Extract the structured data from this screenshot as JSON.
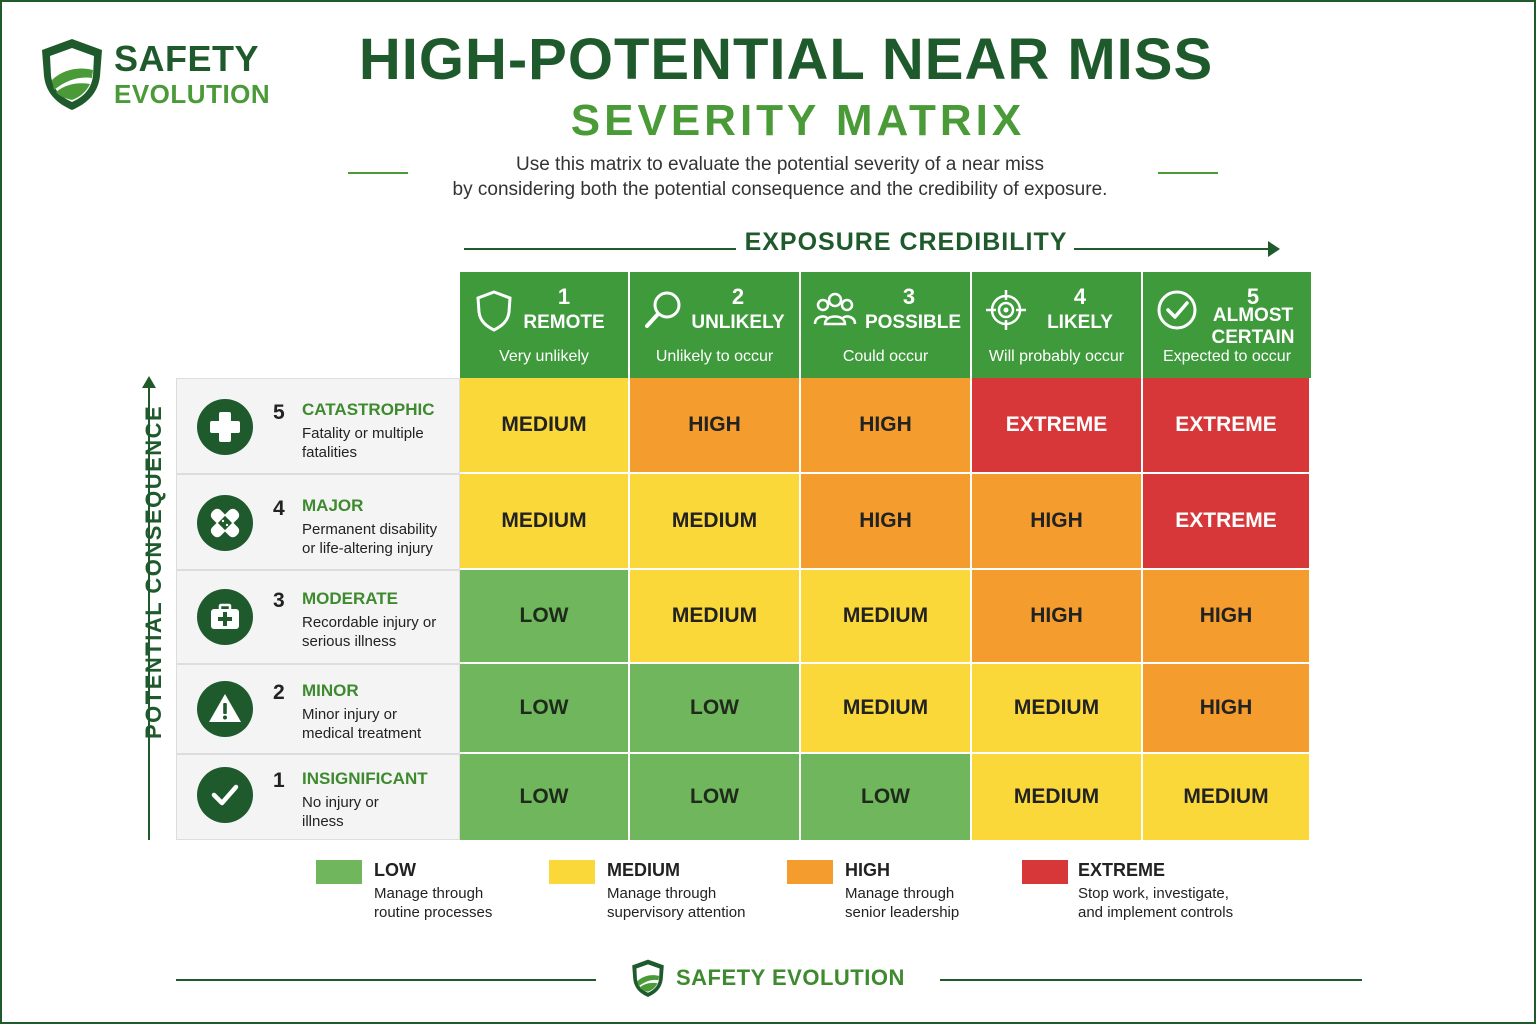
{
  "logo": {
    "line1": "SAFETY",
    "line2": "EVOLUTION",
    "icon": "shield-icon"
  },
  "title": "HIGH-POTENTIAL NEAR MISS",
  "subtitle": "SEVERITY MATRIX",
  "description": {
    "line1": "Use this matrix to evaluate the potential severity of a near miss",
    "line2": "by considering both the potential consequence and the credibility of exposure."
  },
  "axes": {
    "x_label": "EXPOSURE CREDIBILITY",
    "y_label": "POTENTIAL CONSEQUENCE"
  },
  "columns": [
    {
      "num": "1",
      "label": "REMOTE",
      "label2": "",
      "desc": "Very unlikely",
      "icon": "shield-outline-icon"
    },
    {
      "num": "2",
      "label": "UNLIKELY",
      "label2": "",
      "desc": "Unlikely to occur",
      "icon": "magnifier-icon"
    },
    {
      "num": "3",
      "label": "POSSIBLE",
      "label2": "",
      "desc": "Could occur",
      "icon": "people-group-icon"
    },
    {
      "num": "4",
      "label": "LIKELY",
      "label2": "",
      "desc": "Will probably occur",
      "icon": "crosshair-icon"
    },
    {
      "num": "5",
      "label": "ALMOST",
      "label2": "CERTAIN",
      "desc": "Expected to occur",
      "icon": "check-circle-icon"
    }
  ],
  "rows": [
    {
      "num": "5",
      "name": "CATASTROPHIC",
      "desc": "Fatality or multiple fatalities",
      "icon": "medical-cross-icon"
    },
    {
      "num": "4",
      "name": "MAJOR",
      "desc": "Permanent disability or life-altering injury",
      "icon": "bandage-icon"
    },
    {
      "num": "3",
      "name": "MODERATE",
      "desc": "Recordable injury or serious illness",
      "icon": "first-aid-kit-icon"
    },
    {
      "num": "2",
      "name": "MINOR",
      "desc": "Minor injury or medical treatment",
      "icon": "warning-icon"
    },
    {
      "num": "1",
      "name": "INSIGNIFICANT",
      "desc": "No injury or illness",
      "icon": "checkmark-icon"
    }
  ],
  "matrix": [
    [
      "MEDIUM",
      "HIGH",
      "HIGH",
      "EXTREME",
      "EXTREME"
    ],
    [
      "MEDIUM",
      "MEDIUM",
      "HIGH",
      "HIGH",
      "EXTREME"
    ],
    [
      "LOW",
      "MEDIUM",
      "MEDIUM",
      "HIGH",
      "HIGH"
    ],
    [
      "LOW",
      "LOW",
      "MEDIUM",
      "MEDIUM",
      "HIGH"
    ],
    [
      "LOW",
      "LOW",
      "LOW",
      "MEDIUM",
      "MEDIUM"
    ]
  ],
  "colors": {
    "LOW": "#6fb65d",
    "MEDIUM": "#fad83a",
    "HIGH": "#f49c2e",
    "EXTREME": "#d8373a",
    "header_green": "#3e9a3b",
    "dark_green": "#1f5a2c"
  },
  "legend": [
    {
      "name": "LOW",
      "desc": "Manage through routine processes"
    },
    {
      "name": "MEDIUM",
      "desc": "Manage through supervisory attention"
    },
    {
      "name": "HIGH",
      "desc": "Manage through senior leadership"
    },
    {
      "name": "EXTREME",
      "desc": "Stop work, investigate, and implement controls"
    }
  ],
  "footer": {
    "text": "SAFETY EVOLUTION"
  }
}
